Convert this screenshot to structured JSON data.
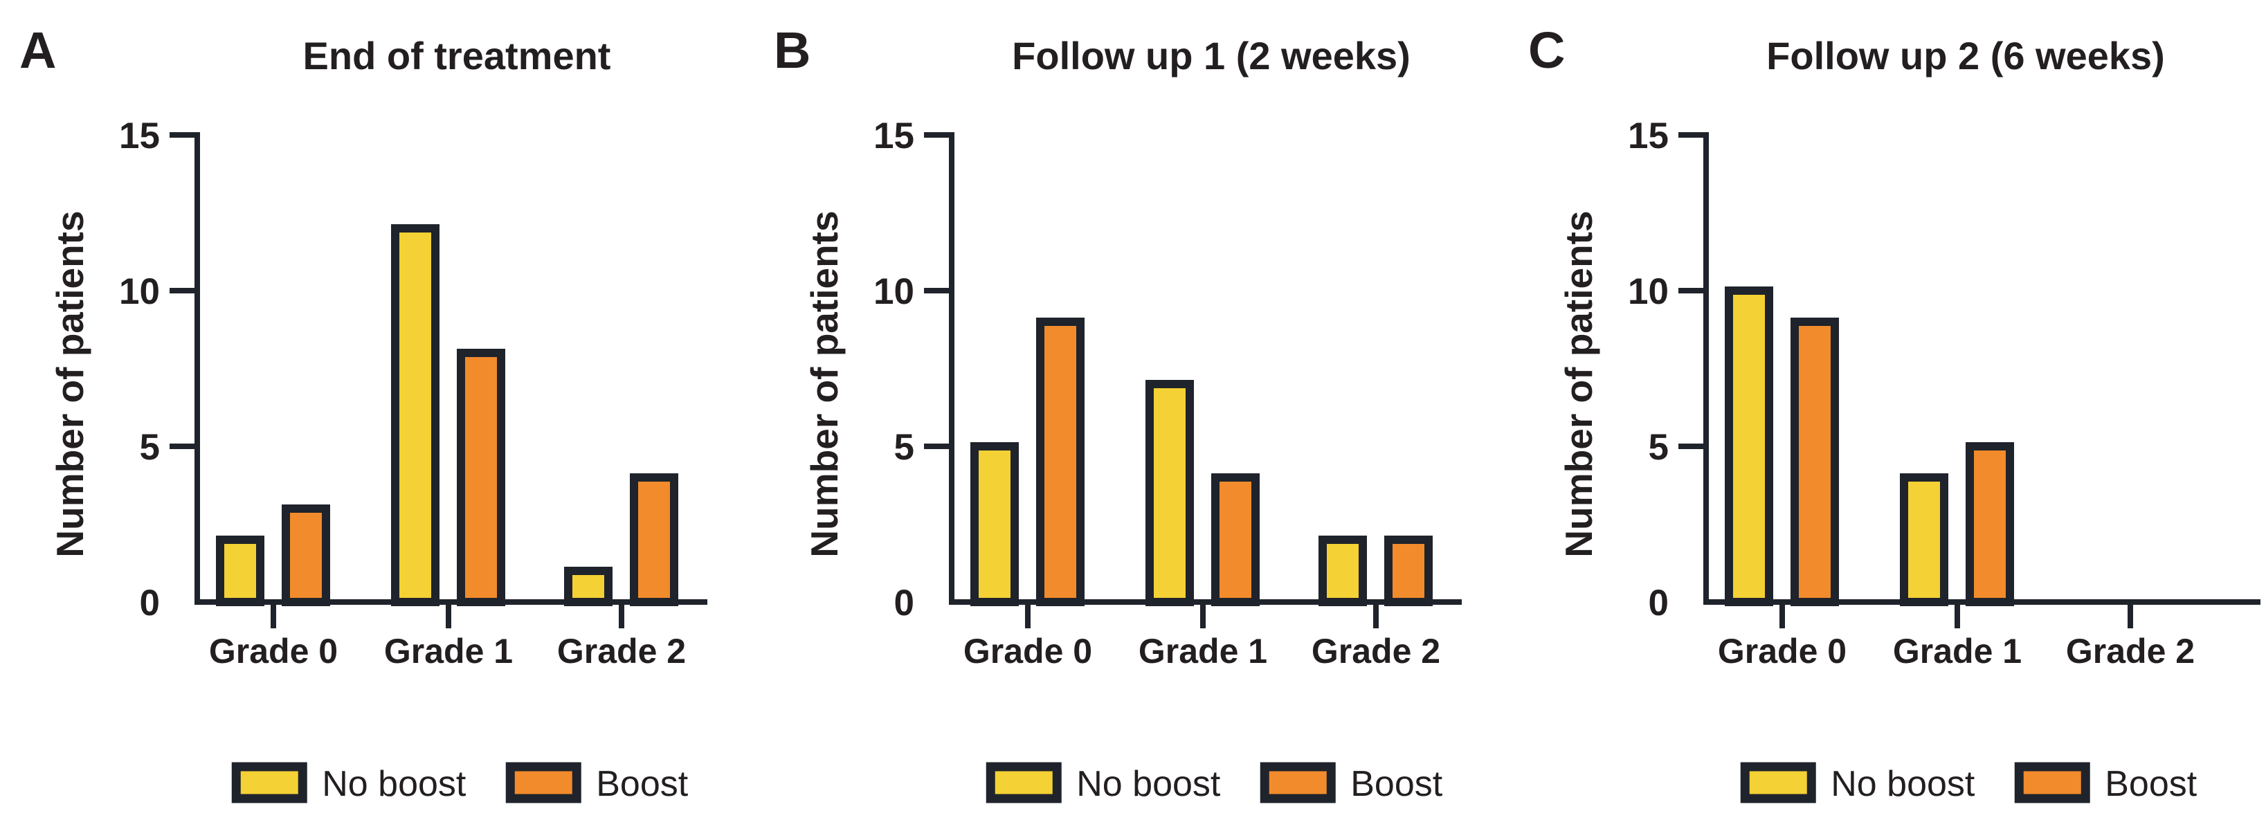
{
  "figure": {
    "description": "Three-panel grouped bar figure of skin toxicity grades by boost treatment",
    "y_axis_label": "Number of patients",
    "legend": [
      "No boost",
      "Boost"
    ]
  },
  "colors": {
    "no_boost_fill": "#F4D134",
    "boost_fill": "#F28B2B",
    "outline": "#1F232B",
    "text": "#231F20",
    "background": "#FFFFFF"
  },
  "chart_data": [
    {
      "type": "bar",
      "panel_letter": "A",
      "title": "End of treatment",
      "categories": [
        "Grade 0",
        "Grade 1",
        "Grade 2"
      ],
      "series": [
        {
          "name": "No boost",
          "values": [
            2,
            12,
            1
          ]
        },
        {
          "name": "Boost",
          "values": [
            3,
            8,
            4
          ]
        }
      ],
      "xlabel": "",
      "ylabel": "Number of patients",
      "ylim": [
        0,
        15
      ],
      "yticks": [
        0,
        5,
        10,
        15
      ],
      "grid": false,
      "legend_position": "bottom"
    },
    {
      "type": "bar",
      "panel_letter": "B",
      "title": "Follow up 1 (2 weeks)",
      "categories": [
        "Grade 0",
        "Grade 1",
        "Grade 2"
      ],
      "series": [
        {
          "name": "No boost",
          "values": [
            5,
            7,
            2
          ]
        },
        {
          "name": "Boost",
          "values": [
            9,
            4,
            2
          ]
        }
      ],
      "xlabel": "",
      "ylabel": "Number of patients",
      "ylim": [
        0,
        15
      ],
      "yticks": [
        0,
        5,
        10,
        15
      ],
      "grid": false,
      "legend_position": "bottom"
    },
    {
      "type": "bar",
      "panel_letter": "C",
      "title": "Follow up 2 (6 weeks)",
      "categories": [
        "Grade 0",
        "Grade 1",
        "Grade 2"
      ],
      "series": [
        {
          "name": "No boost",
          "values": [
            10,
            4,
            0
          ]
        },
        {
          "name": "Boost",
          "values": [
            9,
            5,
            0
          ]
        }
      ],
      "xlabel": "",
      "ylabel": "Number of patients",
      "ylim": [
        0,
        15
      ],
      "yticks": [
        0,
        5,
        10,
        15
      ],
      "grid": false,
      "legend_position": "bottom"
    }
  ]
}
